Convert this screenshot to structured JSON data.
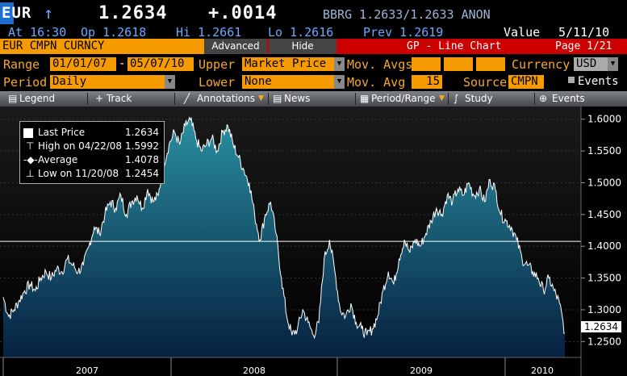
{
  "header": {
    "ticker": "EUR",
    "arrow": "↑",
    "price": "1.2634",
    "change": "+.0014",
    "quote": "BBRG 1.2633/1.2633 ANON",
    "time": "At 16:30",
    "open": "Op 1.2618",
    "high": "Hi 1.2661",
    "low": "Lo 1.2616",
    "prev": "Prev 1.2619",
    "value_label": "Value",
    "date": "5/11/10"
  },
  "bar": {
    "security": "EUR CMPN CURNCY",
    "advanced": "Advanced",
    "hide": "Hide",
    "title": "GP - Line Chart",
    "page": "Page 1/21"
  },
  "controls": {
    "range_label": "Range",
    "range_from": "01/01/07",
    "range_dash": "-",
    "range_to": "05/07/10",
    "upper_label": "Upper",
    "upper_value": "Market Price",
    "mov_avgs_label": "Mov. Avgs",
    "currency_label": "Currency",
    "currency_value": "USD",
    "period_label": "Period",
    "period_value": "Daily",
    "lower_label": "Lower",
    "lower_value": "None",
    "mov_avg_label": "Mov. Avg",
    "mov_avg_value": "15",
    "source_label": "Source",
    "source_value": "CMPN",
    "events_label": "Events"
  },
  "toolbar": {
    "legend": "Legend",
    "track": "+ Track",
    "annotations": "Annotations",
    "news": "News",
    "period_range": "Period/Range",
    "study": "Study",
    "events": "Events"
  },
  "legend": {
    "last_label": "Last Price",
    "last_value": "1.2634",
    "high_label": "High on 04/22/08",
    "high_value": "1.5992",
    "avg_label": "Average",
    "avg_value": "1.4078",
    "low_label": "Low on 11/20/08",
    "low_value": "1.2454"
  },
  "price_tag": "1.2634",
  "colors": {
    "amber": "#f9a825",
    "field": "#f59b00",
    "red_bar": "#cc0000",
    "blue_sel": "#1c6fd1",
    "area_top": "#2a8fa0",
    "area_bottom": "#062040"
  },
  "chart_data": {
    "type": "area",
    "ylim": [
      1.225,
      1.62
    ],
    "yticks": [
      "1.6000",
      "1.5500",
      "1.5000",
      "1.4500",
      "1.4000",
      "1.3500",
      "1.3000",
      "1.2500"
    ],
    "xticks": [
      "2007",
      "2008",
      "2009",
      "2010"
    ],
    "average_line": 1.4078,
    "series": [
      {
        "values": [
          1.32,
          1.29,
          1.3,
          1.315,
          1.33,
          1.34,
          1.33,
          1.35,
          1.36,
          1.35,
          1.365,
          1.36,
          1.38,
          1.37,
          1.36,
          1.37,
          1.4,
          1.43,
          1.42,
          1.45,
          1.47,
          1.46,
          1.48,
          1.45,
          1.47,
          1.48,
          1.46,
          1.49,
          1.47,
          1.48,
          1.53,
          1.56,
          1.58,
          1.56,
          1.59,
          1.599,
          1.57,
          1.55,
          1.56,
          1.57,
          1.55,
          1.58,
          1.59,
          1.56,
          1.54,
          1.52,
          1.5,
          1.45,
          1.41,
          1.45,
          1.47,
          1.42,
          1.35,
          1.29,
          1.26,
          1.27,
          1.3,
          1.28,
          1.26,
          1.28,
          1.38,
          1.41,
          1.36,
          1.3,
          1.29,
          1.31,
          1.28,
          1.27,
          1.26,
          1.27,
          1.29,
          1.33,
          1.36,
          1.34,
          1.38,
          1.41,
          1.39,
          1.41,
          1.4,
          1.42,
          1.44,
          1.46,
          1.45,
          1.48,
          1.47,
          1.49,
          1.48,
          1.5,
          1.48,
          1.49,
          1.47,
          1.505,
          1.49,
          1.45,
          1.44,
          1.43,
          1.41,
          1.38,
          1.37,
          1.36,
          1.35,
          1.33,
          1.35,
          1.33,
          1.31,
          1.2634
        ]
      }
    ]
  }
}
